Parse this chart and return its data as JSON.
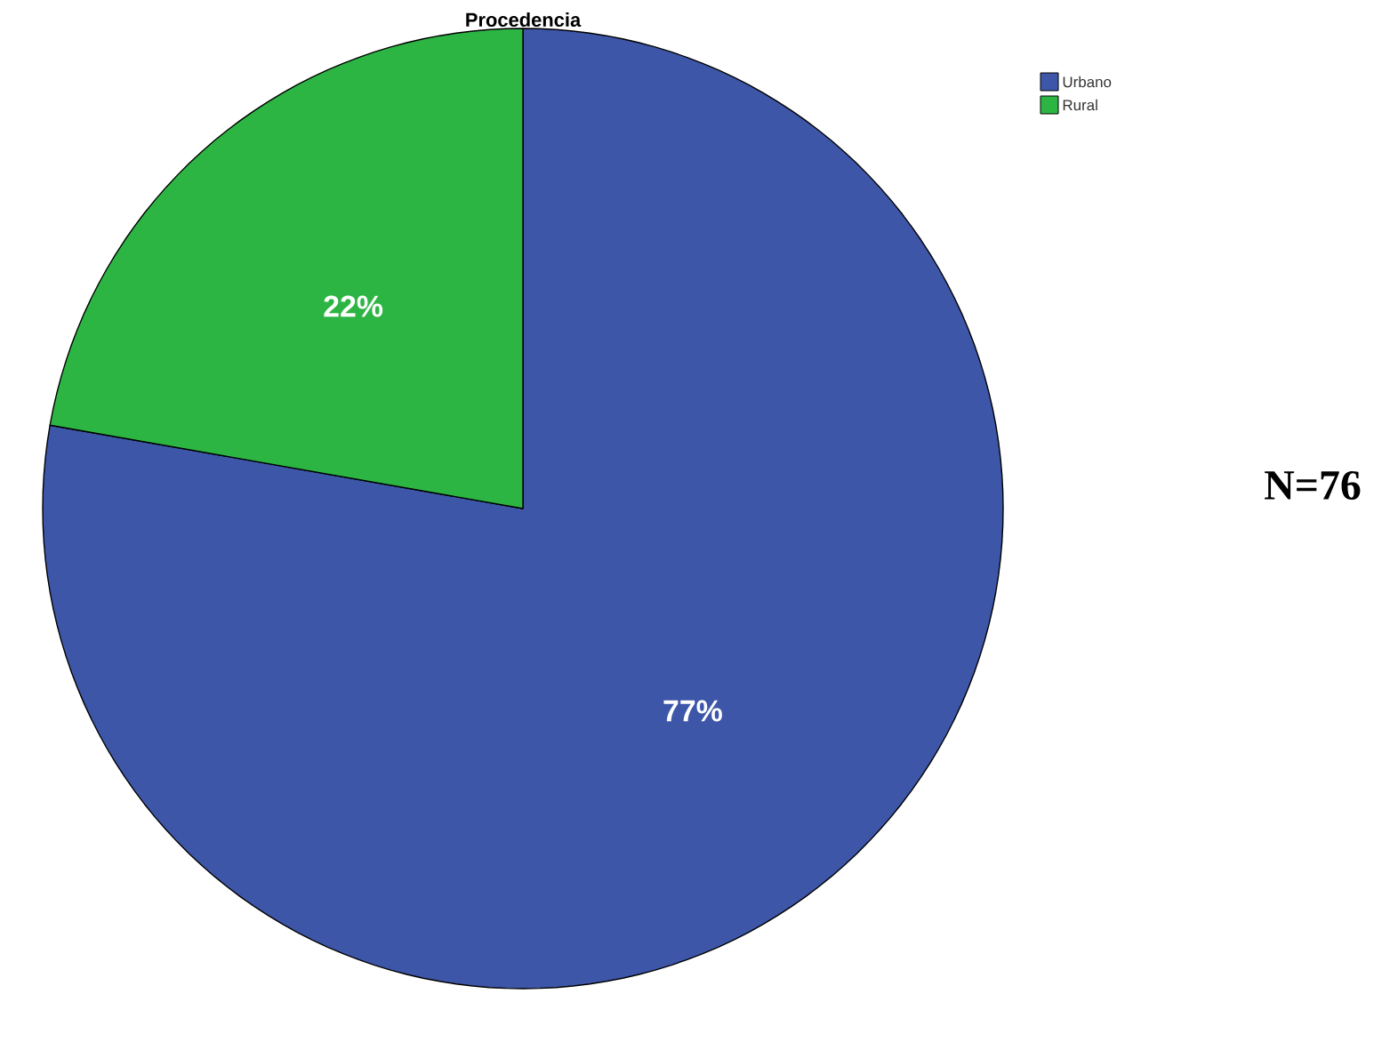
{
  "chart_data": {
    "type": "pie",
    "title": "Procedencia",
    "categories": [
      "Urbano",
      "Rural"
    ],
    "values": [
      77,
      22
    ],
    "colors": [
      "#3d56a8",
      "#2db544"
    ],
    "value_labels": [
      "77%",
      "22%"
    ],
    "legend": "top right",
    "annotations": [
      "N=76"
    ]
  }
}
